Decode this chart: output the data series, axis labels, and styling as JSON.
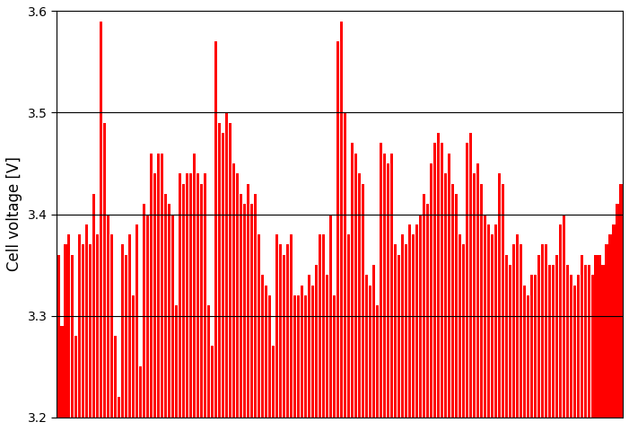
{
  "ylabel": "Cell voltage [V]",
  "ylim": [
    3.2,
    3.6
  ],
  "yticks": [
    3.2,
    3.3,
    3.4,
    3.5,
    3.6
  ],
  "bar_color": "#ff0000",
  "background_color": "#ffffff",
  "grid_color": "#000000",
  "grid_lines": [
    3.3,
    3.4,
    3.5
  ],
  "bar_width": 0.8,
  "values": [
    3.36,
    3.29,
    3.37,
    3.38,
    3.36,
    3.28,
    3.38,
    3.37,
    3.39,
    3.37,
    3.42,
    3.38,
    3.59,
    3.49,
    3.4,
    3.38,
    3.28,
    3.22,
    3.37,
    3.36,
    3.38,
    3.32,
    3.39,
    3.25,
    3.41,
    3.4,
    3.46,
    3.44,
    3.46,
    3.46,
    3.42,
    3.41,
    3.4,
    3.31,
    3.44,
    3.43,
    3.44,
    3.44,
    3.46,
    3.44,
    3.43,
    3.44,
    3.31,
    3.27,
    3.57,
    3.49,
    3.48,
    3.5,
    3.49,
    3.45,
    3.44,
    3.42,
    3.41,
    3.43,
    3.41,
    3.42,
    3.38,
    3.34,
    3.33,
    3.32,
    3.27,
    3.38,
    3.37,
    3.36,
    3.37,
    3.38,
    3.32,
    3.32,
    3.33,
    3.32,
    3.34,
    3.33,
    3.35,
    3.38,
    3.38,
    3.34,
    3.4,
    3.32,
    3.57,
    3.59,
    3.5,
    3.38,
    3.47,
    3.46,
    3.44,
    3.43,
    3.34,
    3.33,
    3.35,
    3.31,
    3.47,
    3.46,
    3.45,
    3.46,
    3.37,
    3.36,
    3.38,
    3.37,
    3.39,
    3.38,
    3.39,
    3.4,
    3.42,
    3.41,
    3.45,
    3.47,
    3.48,
    3.47,
    3.44,
    3.46,
    3.43,
    3.42,
    3.38,
    3.37,
    3.47,
    3.48,
    3.44,
    3.45,
    3.43,
    3.4,
    3.39,
    3.38,
    3.39,
    3.44,
    3.43,
    3.36,
    3.35,
    3.37,
    3.38,
    3.37,
    3.33,
    3.32,
    3.34,
    3.34,
    3.36,
    3.37,
    3.37,
    3.35,
    3.35,
    3.36,
    3.39,
    3.4,
    3.35,
    3.34,
    3.33,
    3.34,
    3.36,
    3.35,
    3.35,
    3.34,
    3.36,
    3.36,
    3.35,
    3.37,
    3.38,
    3.39,
    3.41,
    3.43
  ]
}
